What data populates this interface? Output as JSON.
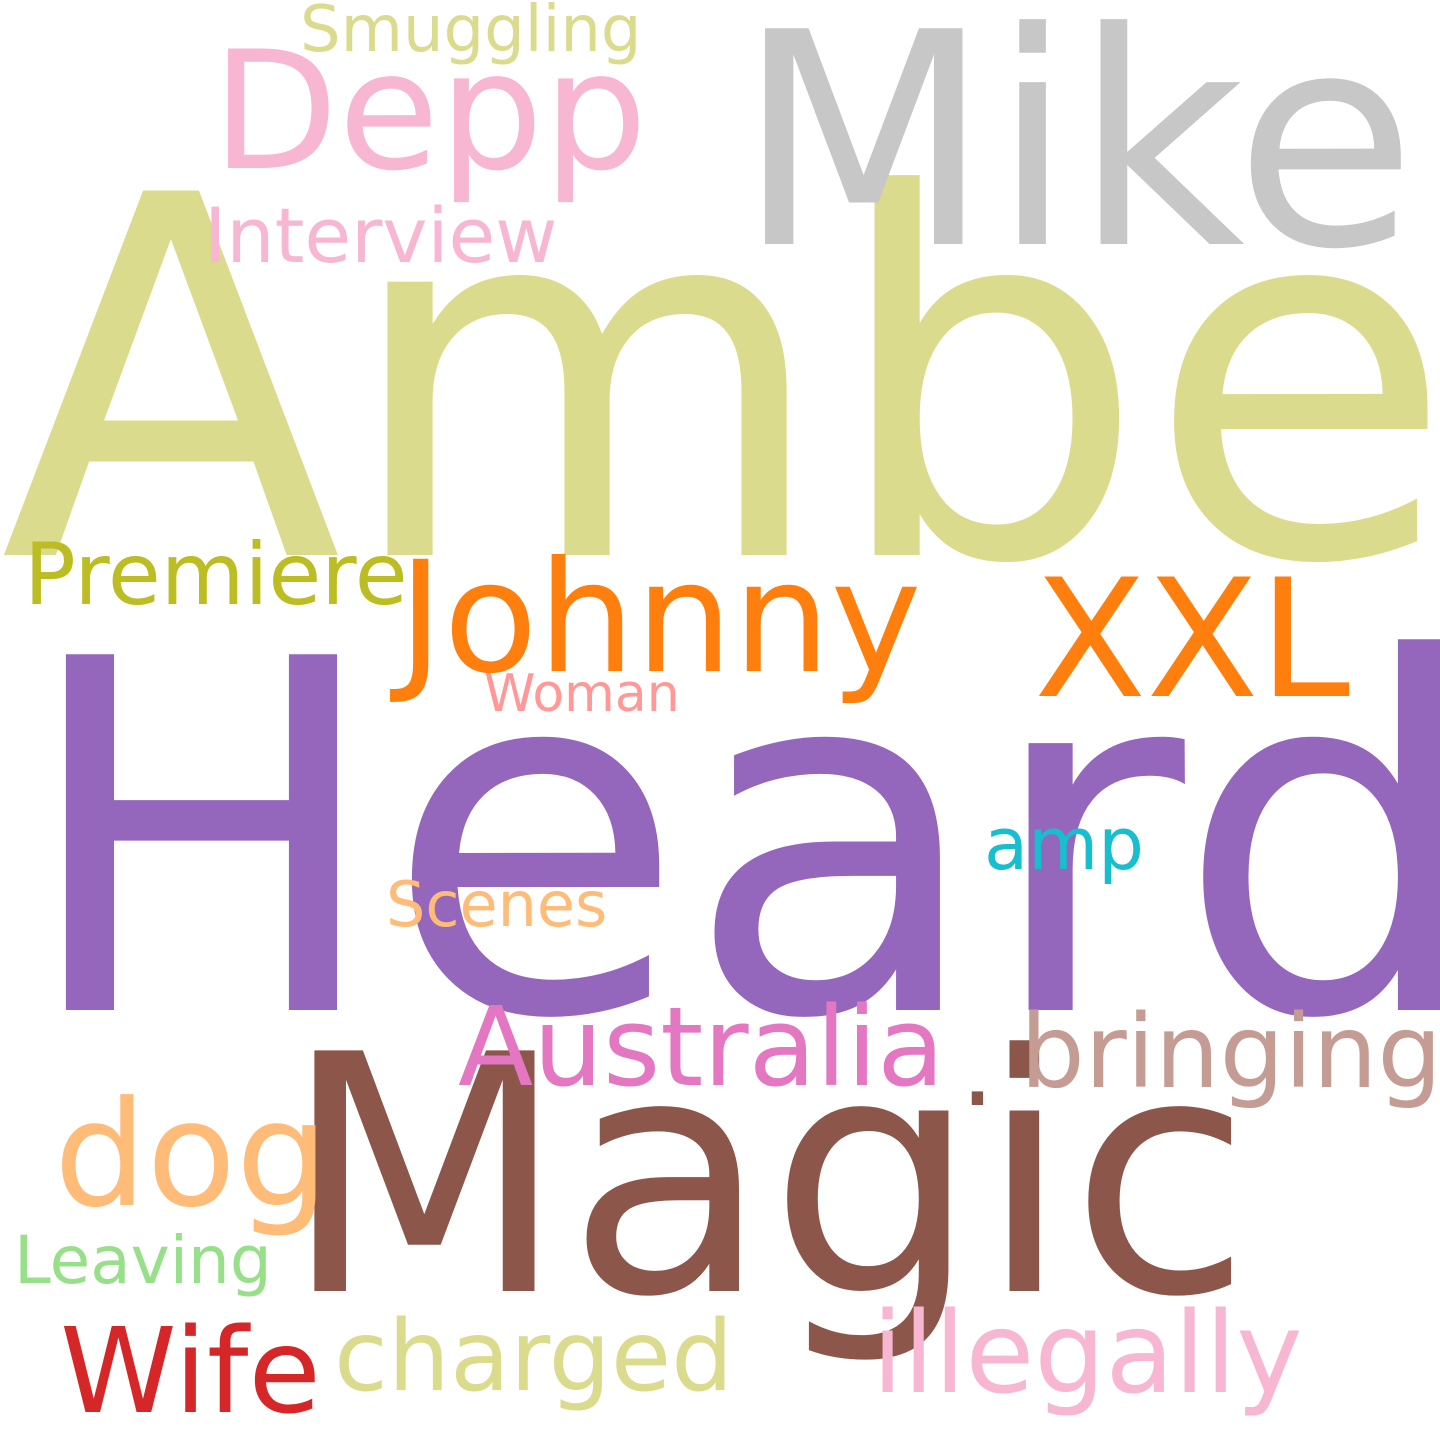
{
  "background": "#ffffff",
  "words": [
    {
      "text": "Heard",
      "color": "#9467bd"
    },
    {
      "text": "Amber",
      "color": "#dbdb8d"
    },
    {
      "text": "Magic",
      "color": "#8c564b"
    },
    {
      "text": "Mike",
      "color": "#c7c7c7"
    },
    {
      "text": "Johnny",
      "color": "#ff7f0e"
    },
    {
      "text": "XXL",
      "color": "#ff7f0e"
    },
    {
      "text": "Depp",
      "color": "#f7b6d2"
    },
    {
      "text": "Australia",
      "color": "#e377c2"
    },
    {
      "text": "bringing",
      "color": "#c49c94"
    },
    {
      "text": "illegally",
      "color": "#f7b6d2"
    },
    {
      "text": "dog",
      "color": "#ffbb78"
    },
    {
      "text": "charged",
      "color": "#dbdb8d"
    },
    {
      "text": "Wife",
      "color": "#d62728"
    },
    {
      "text": "Premiere",
      "color": "#bcbd22"
    },
    {
      "text": "Interview",
      "color": "#f7b6d2"
    },
    {
      "text": "Smuggling",
      "color": "#dbdb8d"
    },
    {
      "text": "Scenes",
      "color": "#ffbb78"
    },
    {
      "text": "amp",
      "color": "#17becf"
    },
    {
      "text": "Woman",
      "color": "#ff9896"
    },
    {
      "text": "Leaving",
      "color": "#98df8a"
    }
  ]
}
